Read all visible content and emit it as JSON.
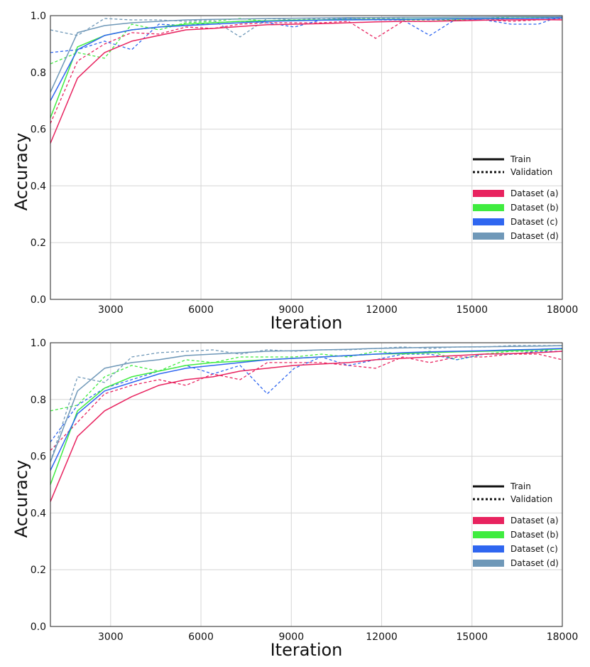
{
  "chart_data": [
    {
      "type": "line",
      "xlabel": "Iteration",
      "ylabel": "Accuracy",
      "xlim": [
        1000,
        18000
      ],
      "ylim": [
        0.0,
        1.0
      ],
      "xticks": [
        3000,
        6000,
        9000,
        12000,
        15000,
        18000
      ],
      "xtick_labels": [
        "3000",
        "6000",
        "9000",
        "12000",
        "15000",
        "18000"
      ],
      "yticks": [
        0.0,
        0.2,
        0.4,
        0.6,
        0.8,
        1.0
      ],
      "ytick_labels": [
        "0.0",
        "0.2",
        "0.4",
        "0.6",
        "0.8",
        "1.0"
      ],
      "grid": true,
      "legend": {
        "placement": "center-right",
        "styles": [
          {
            "label": "Train",
            "dash": "solid"
          },
          {
            "label": "Validation",
            "dash": "dotted"
          }
        ],
        "datasets": [
          {
            "label": "Dataset (a)",
            "color": "#e8235f"
          },
          {
            "label": "Dataset (b)",
            "color": "#3fec3f"
          },
          {
            "label": "Dataset (c)",
            "color": "#2f66f0"
          },
          {
            "label": "Dataset (d)",
            "color": "#6f98b8"
          }
        ]
      },
      "x": [
        1000,
        1900,
        2800,
        3700,
        4600,
        5500,
        6400,
        7300,
        8200,
        9100,
        10000,
        10900,
        11800,
        12700,
        13600,
        14500,
        15400,
        16300,
        17200,
        18000
      ],
      "series": [
        {
          "name": "Dataset (a) Train",
          "dataset": "Dataset (a)",
          "kind": "train",
          "color": "#e8235f",
          "values": [
            0.55,
            0.78,
            0.87,
            0.91,
            0.93,
            0.95,
            0.955,
            0.962,
            0.968,
            0.97,
            0.972,
            0.975,
            0.978,
            0.98,
            0.98,
            0.982,
            0.984,
            0.985,
            0.986,
            0.985
          ]
        },
        {
          "name": "Dataset (a) Validation",
          "dataset": "Dataset (a)",
          "kind": "validation",
          "color": "#e8235f",
          "values": [
            0.62,
            0.84,
            0.9,
            0.94,
            0.935,
            0.96,
            0.955,
            0.97,
            0.975,
            0.975,
            0.975,
            0.98,
            0.92,
            0.98,
            0.98,
            0.985,
            0.985,
            0.98,
            0.985,
            0.99
          ]
        },
        {
          "name": "Dataset (b) Train",
          "dataset": "Dataset (b)",
          "kind": "train",
          "color": "#3fec3f",
          "values": [
            0.64,
            0.89,
            0.93,
            0.95,
            0.96,
            0.97,
            0.975,
            0.98,
            0.982,
            0.984,
            0.985,
            0.986,
            0.987,
            0.988,
            0.989,
            0.99,
            0.99,
            0.991,
            0.992,
            0.992
          ]
        },
        {
          "name": "Dataset (b) Validation",
          "dataset": "Dataset (b)",
          "kind": "validation",
          "color": "#3fec3f",
          "values": [
            0.83,
            0.87,
            0.85,
            0.97,
            0.95,
            0.975,
            0.98,
            0.99,
            0.98,
            0.985,
            0.985,
            0.99,
            0.99,
            0.985,
            0.985,
            0.985,
            0.99,
            0.995,
            0.995,
            0.995
          ]
        },
        {
          "name": "Dataset (c) Train",
          "dataset": "Dataset (c)",
          "kind": "train",
          "color": "#2f66f0",
          "values": [
            0.7,
            0.88,
            0.93,
            0.95,
            0.96,
            0.965,
            0.97,
            0.975,
            0.98,
            0.982,
            0.984,
            0.985,
            0.986,
            0.987,
            0.988,
            0.989,
            0.99,
            0.99,
            0.991,
            0.992
          ]
        },
        {
          "name": "Dataset (c) Validation",
          "dataset": "Dataset (c)",
          "kind": "validation",
          "color": "#2f66f0",
          "values": [
            0.87,
            0.88,
            0.91,
            0.88,
            0.97,
            0.965,
            0.975,
            0.98,
            0.975,
            0.96,
            0.985,
            0.99,
            0.985,
            0.985,
            0.93,
            0.99,
            0.985,
            0.97,
            0.97,
            1.0
          ]
        },
        {
          "name": "Dataset (d) Train",
          "dataset": "Dataset (d)",
          "kind": "train",
          "color": "#6f98b8",
          "values": [
            0.73,
            0.94,
            0.965,
            0.975,
            0.98,
            0.985,
            0.987,
            0.988,
            0.99,
            0.991,
            0.992,
            0.993,
            0.993,
            0.994,
            0.994,
            0.995,
            0.995,
            0.996,
            0.996,
            0.996
          ]
        },
        {
          "name": "Dataset (d) Validation",
          "dataset": "Dataset (d)",
          "kind": "validation",
          "color": "#6f98b8",
          "values": [
            0.95,
            0.93,
            0.99,
            0.985,
            0.985,
            0.98,
            0.985,
            0.925,
            0.99,
            0.985,
            0.99,
            0.99,
            0.99,
            0.99,
            0.985,
            0.99,
            0.985,
            0.99,
            0.99,
            0.99
          ]
        }
      ]
    },
    {
      "type": "line",
      "xlabel": "Iteration",
      "ylabel": "Accuracy",
      "xlim": [
        1000,
        18000
      ],
      "ylim": [
        0.0,
        1.0
      ],
      "xticks": [
        3000,
        6000,
        9000,
        12000,
        15000,
        18000
      ],
      "xtick_labels": [
        "3000",
        "6000",
        "9000",
        "12000",
        "15000",
        "18000"
      ],
      "yticks": [
        0.0,
        0.2,
        0.4,
        0.6,
        0.8,
        1.0
      ],
      "ytick_labels": [
        "0.0",
        "0.2",
        "0.4",
        "0.6",
        "0.8",
        "1.0"
      ],
      "grid": true,
      "legend": {
        "placement": "center-right",
        "styles": [
          {
            "label": "Train",
            "dash": "solid"
          },
          {
            "label": "Validation",
            "dash": "dotted"
          }
        ],
        "datasets": [
          {
            "label": "Dataset (a)",
            "color": "#e8235f"
          },
          {
            "label": "Dataset (b)",
            "color": "#3fec3f"
          },
          {
            "label": "Dataset (c)",
            "color": "#2f66f0"
          },
          {
            "label": "Dataset (d)",
            "color": "#6f98b8"
          }
        ]
      },
      "x": [
        1000,
        1900,
        2800,
        3700,
        4600,
        5500,
        6400,
        7300,
        8200,
        9100,
        10000,
        10900,
        11800,
        12700,
        13600,
        14500,
        15400,
        16300,
        17200,
        18000
      ],
      "series": [
        {
          "name": "Dataset (a) Train",
          "dataset": "Dataset (a)",
          "kind": "train",
          "color": "#e8235f",
          "values": [
            0.44,
            0.67,
            0.76,
            0.81,
            0.85,
            0.87,
            0.88,
            0.9,
            0.91,
            0.92,
            0.925,
            0.93,
            0.94,
            0.945,
            0.95,
            0.955,
            0.96,
            0.962,
            0.965,
            0.97
          ]
        },
        {
          "name": "Dataset (a) Validation",
          "dataset": "Dataset (a)",
          "kind": "validation",
          "color": "#e8235f",
          "values": [
            0.62,
            0.72,
            0.82,
            0.85,
            0.87,
            0.85,
            0.89,
            0.87,
            0.93,
            0.93,
            0.93,
            0.92,
            0.91,
            0.95,
            0.93,
            0.95,
            0.95,
            0.96,
            0.96,
            0.94
          ]
        },
        {
          "name": "Dataset (b) Train",
          "dataset": "Dataset (b)",
          "kind": "train",
          "color": "#3fec3f",
          "values": [
            0.5,
            0.76,
            0.84,
            0.88,
            0.9,
            0.92,
            0.93,
            0.935,
            0.94,
            0.945,
            0.95,
            0.955,
            0.96,
            0.962,
            0.965,
            0.968,
            0.97,
            0.972,
            0.975,
            0.978
          ]
        },
        {
          "name": "Dataset (b) Validation",
          "dataset": "Dataset (b)",
          "kind": "validation",
          "color": "#3fec3f",
          "values": [
            0.76,
            0.78,
            0.88,
            0.92,
            0.9,
            0.94,
            0.93,
            0.95,
            0.95,
            0.95,
            0.96,
            0.95,
            0.97,
            0.96,
            0.97,
            0.94,
            0.96,
            0.97,
            0.97,
            0.98
          ]
        },
        {
          "name": "Dataset (c) Train",
          "dataset": "Dataset (c)",
          "kind": "train",
          "color": "#2f66f0",
          "values": [
            0.55,
            0.75,
            0.83,
            0.86,
            0.89,
            0.91,
            0.92,
            0.93,
            0.94,
            0.945,
            0.95,
            0.955,
            0.96,
            0.965,
            0.968,
            0.97,
            0.972,
            0.975,
            0.977,
            0.98
          ]
        },
        {
          "name": "Dataset (c) Validation",
          "dataset": "Dataset (c)",
          "kind": "validation",
          "color": "#2f66f0",
          "values": [
            0.65,
            0.78,
            0.84,
            0.87,
            0.9,
            0.92,
            0.89,
            0.92,
            0.82,
            0.91,
            0.95,
            0.92,
            0.94,
            0.96,
            0.96,
            0.94,
            0.96,
            0.96,
            0.97,
            0.97
          ]
        },
        {
          "name": "Dataset (d) Train",
          "dataset": "Dataset (d)",
          "kind": "train",
          "color": "#6f98b8",
          "values": [
            0.58,
            0.83,
            0.91,
            0.93,
            0.94,
            0.955,
            0.96,
            0.965,
            0.97,
            0.972,
            0.975,
            0.977,
            0.98,
            0.982,
            0.984,
            0.985,
            0.986,
            0.987,
            0.988,
            0.99
          ]
        },
        {
          "name": "Dataset (d) Validation",
          "dataset": "Dataset (d)",
          "kind": "validation",
          "color": "#6f98b8",
          "values": [
            0.58,
            0.88,
            0.86,
            0.95,
            0.965,
            0.97,
            0.975,
            0.96,
            0.975,
            0.97,
            0.975,
            0.975,
            0.98,
            0.985,
            0.98,
            0.985,
            0.985,
            0.99,
            0.99,
            0.99
          ]
        }
      ]
    }
  ]
}
